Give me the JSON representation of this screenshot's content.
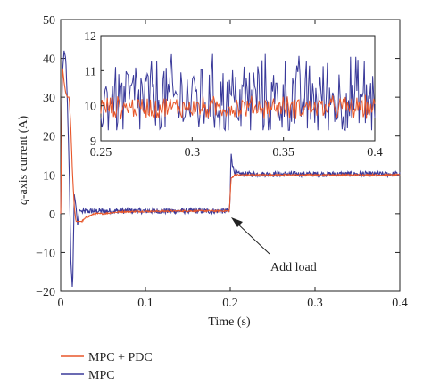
{
  "chart_data": {
    "type": "line",
    "xlabel": "Time (s)",
    "ylabel": "q-axis current (A)",
    "ylabel_italic_part": "q",
    "ylabel_rest": "-axis current (A)",
    "xlim": [
      0,
      0.4
    ],
    "ylim": [
      -20,
      50
    ],
    "xticks": [
      0,
      0.1,
      0.2,
      0.3,
      0.4
    ],
    "xtick_labels": [
      "0",
      "0.1",
      "0.2",
      "0.3",
      "0.4"
    ],
    "yticks": [
      -20,
      -10,
      0,
      10,
      20,
      30,
      40,
      50
    ],
    "ytick_labels": [
      "−20",
      "−10",
      "0",
      "10",
      "20",
      "30",
      "40",
      "50"
    ],
    "grid": false,
    "legend_placement": "below",
    "series": [
      {
        "name": "MPC + PDC",
        "color": "#e8572a",
        "x": [
          0,
          0.002,
          0.004,
          0.006,
          0.008,
          0.01,
          0.012,
          0.014,
          0.016,
          0.018,
          0.02,
          0.025,
          0.03,
          0.04,
          0.05,
          0.07,
          0.1,
          0.15,
          0.199,
          0.2,
          0.201,
          0.205,
          0.21,
          0.25,
          0.3,
          0.35,
          0.4
        ],
        "y": [
          0,
          38,
          34,
          31,
          30,
          30,
          22,
          10,
          2,
          -2,
          -2,
          -2,
          -1,
          0,
          0,
          0.5,
          0.6,
          0.7,
          0.7,
          5,
          9,
          10,
          10,
          10,
          10,
          10,
          10
        ],
        "noise": 0.2
      },
      {
        "name": "MPC",
        "color": "#3a3a9a",
        "x": [
          0,
          0.002,
          0.004,
          0.006,
          0.008,
          0.01,
          0.012,
          0.014,
          0.016,
          0.018,
          0.02,
          0.022,
          0.025,
          0.03,
          0.04,
          0.05,
          0.1,
          0.15,
          0.199,
          0.2,
          0.201,
          0.203,
          0.206,
          0.21,
          0.25,
          0.3,
          0.35,
          0.4
        ],
        "y": [
          0,
          36,
          42,
          40,
          28,
          12,
          -12,
          -20,
          5,
          2,
          -3,
          1,
          0.5,
          0.6,
          0.7,
          0.7,
          0.7,
          0.7,
          0.7,
          5,
          16,
          12,
          10.5,
          10.2,
          10.2,
          10.2,
          10.2,
          10.2
        ],
        "noise": 0.7
      }
    ],
    "inset": {
      "xlim": [
        0.25,
        0.4
      ],
      "ylim": [
        9,
        12
      ],
      "xticks": [
        0.25,
        0.3,
        0.35,
        0.4
      ],
      "xtick_labels": [
        "0.25",
        "0.3",
        "0.35",
        "0.4"
      ],
      "yticks": [
        9,
        10,
        11,
        12
      ],
      "ytick_labels": [
        "9",
        "10",
        "11",
        "12"
      ],
      "series": [
        {
          "name": "MPC",
          "color": "#3a3a9a",
          "mean": 10.2,
          "spread": 1.3
        },
        {
          "name": "MPC + PDC",
          "color": "#e8572a",
          "mean": 9.95,
          "spread": 0.35
        }
      ]
    },
    "annotations": [
      {
        "text": "Add load",
        "x": 0.2,
        "y": 0.7
      }
    ]
  }
}
